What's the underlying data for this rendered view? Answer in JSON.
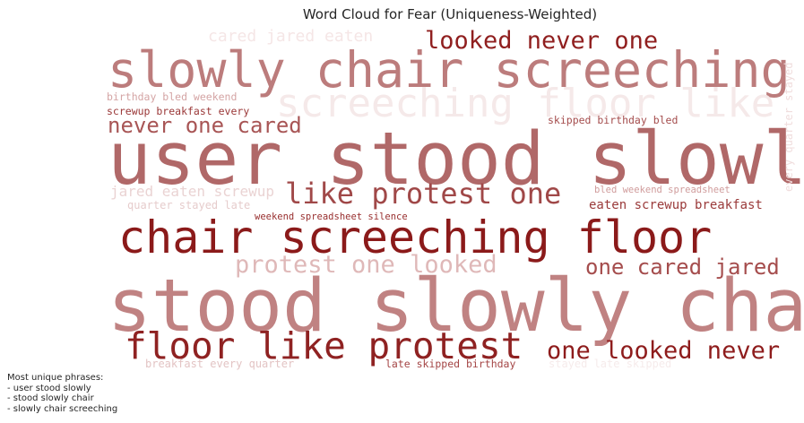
{
  "chart_data": {
    "type": "wordcloud",
    "title": "Word Cloud for Fear (Uniqueness-Weighted)",
    "words": [
      {
        "text": "user stood slowly",
        "weight": 1.0,
        "color": "#b06868"
      },
      {
        "text": "stood slowly chair",
        "weight": 1.0,
        "color": "#c08282"
      },
      {
        "text": "slowly chair screeching",
        "weight": 0.82,
        "color": "#bc7c7c"
      },
      {
        "text": "screeching floor like",
        "weight": 0.66,
        "color": "#f5e9e9"
      },
      {
        "text": "chair screeching floor",
        "weight": 0.78,
        "color": "#8b1a1a"
      },
      {
        "text": "floor like protest",
        "weight": 0.63,
        "color": "#8f2222"
      },
      {
        "text": "like protest one",
        "weight": 0.5,
        "color": "#a04848"
      },
      {
        "text": "protest one looked",
        "weight": 0.41,
        "color": "#dfb8b8"
      },
      {
        "text": "looked never one",
        "weight": 0.41,
        "color": "#901f1f"
      },
      {
        "text": "one looked never",
        "weight": 0.41,
        "color": "#8e1c1c"
      },
      {
        "text": "one cared jared",
        "weight": 0.37,
        "color": "#a54d4d"
      },
      {
        "text": "never one cared",
        "weight": 0.37,
        "color": "#a85555"
      },
      {
        "text": "cared jared eaten",
        "weight": 0.28,
        "color": "#f5e6e6"
      },
      {
        "text": "jared eaten screwup",
        "weight": 0.25,
        "color": "#ead3d3"
      },
      {
        "text": "eaten screwup breakfast",
        "weight": 0.22,
        "color": "#9a3a3a"
      },
      {
        "text": "birthday bled weekend",
        "weight": 0.18,
        "color": "#d4a4a4"
      },
      {
        "text": "screwup breakfast every",
        "weight": 0.18,
        "color": "#9a3737"
      },
      {
        "text": "skipped birthday bled",
        "weight": 0.18,
        "color": "#a44c4c"
      },
      {
        "text": "bled weekend spreadsheet",
        "weight": 0.16,
        "color": "#d09c9c"
      },
      {
        "text": "quarter stayed late",
        "weight": 0.18,
        "color": "#e6cccc"
      },
      {
        "text": "weekend spreadsheet silence",
        "weight": 0.16,
        "color": "#982f2f"
      },
      {
        "text": "breakfast every quarter",
        "weight": 0.18,
        "color": "#e3c4c4"
      },
      {
        "text": "late skipped birthday",
        "weight": 0.18,
        "color": "#a44545"
      },
      {
        "text": "stayed late skipped",
        "weight": 0.18,
        "color": "#f6ebeb"
      },
      {
        "text": "every quarter stayed",
        "weight": 0.18,
        "color": "#f0dddd",
        "vertical": true
      }
    ]
  },
  "notes": {
    "heading": "Most unique phrases:",
    "items": [
      "- user stood slowly",
      "- stood slowly chair",
      "- slowly chair screeching"
    ]
  }
}
